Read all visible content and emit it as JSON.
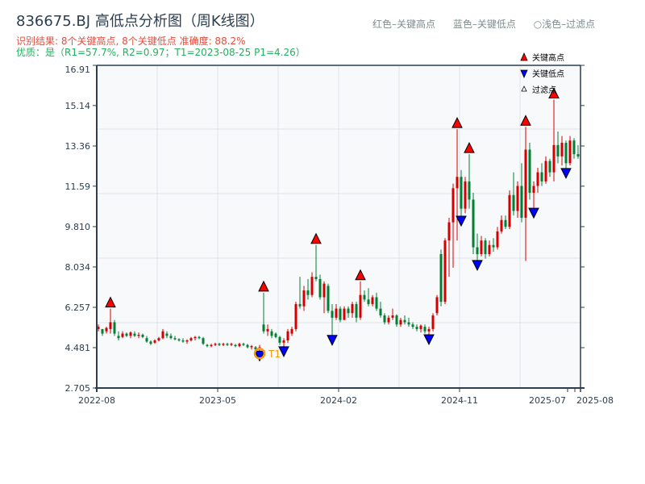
{
  "header": {
    "title": "836675.BJ 高低点分析图（周K线图）",
    "result_line": "识别结果: 8个关键高点, 8个关键低点  准确度: 88.2%",
    "quality_line": "优质：是（R1=57.7%, R2=0.97；T1=2023-08-25 P1=4.26）",
    "top_legend": [
      "红色–关键高点",
      "蓝色–关键低点",
      "○浅色–过滤点"
    ]
  },
  "chart_data": {
    "type": "candlestick",
    "title": "836675.BJ 高低点分析图（周K线图）",
    "colors": {
      "up": "#d40000",
      "down": "#008030",
      "high_marker": "#ff0000",
      "low_marker": "#0000ff",
      "t1": "#f39c12",
      "plot_bg": "#f7f9fb",
      "axis": "#2c3e50"
    },
    "ylim": [
      2.705,
      16.91
    ],
    "yticks": [
      "2.705",
      "4.481",
      "6.257",
      "8.034",
      "9.810",
      "11.59",
      "13.36",
      "15.14",
      "16.91"
    ],
    "ytick_values": [
      2.705,
      4.481,
      6.257,
      8.034,
      9.81,
      11.59,
      13.36,
      15.14,
      16.91
    ],
    "xticks": [
      "2022-08",
      "2023-05",
      "2024-02",
      "2024-11",
      "2025-07",
      "2025-08"
    ],
    "grid": true,
    "legend": {
      "position": "top-right",
      "items": [
        "关键高点",
        "关键低点",
        "过滤点"
      ]
    },
    "ohlc": [
      [
        5.3,
        5.5,
        5.2,
        5.4
      ],
      [
        5.3,
        5.3,
        5.0,
        5.1
      ],
      [
        5.2,
        5.4,
        5.1,
        5.35
      ],
      [
        5.3,
        6.2,
        5.1,
        5.6
      ],
      [
        5.6,
        5.7,
        5.0,
        5.1
      ],
      [
        5.0,
        5.2,
        4.8,
        4.9
      ],
      [
        4.95,
        5.2,
        4.9,
        5.1
      ],
      [
        5.1,
        5.15,
        4.95,
        5.0
      ],
      [
        5.0,
        5.2,
        4.9,
        5.15
      ],
      [
        5.1,
        5.2,
        4.95,
        5.0
      ],
      [
        5.0,
        5.15,
        4.9,
        5.05
      ],
      [
        5.05,
        5.1,
        4.9,
        4.95
      ],
      [
        4.9,
        5.0,
        4.7,
        4.75
      ],
      [
        4.75,
        4.8,
        4.6,
        4.65
      ],
      [
        4.7,
        4.85,
        4.65,
        4.8
      ],
      [
        4.8,
        4.95,
        4.75,
        4.9
      ],
      [
        4.9,
        5.3,
        4.85,
        5.2
      ],
      [
        5.1,
        5.2,
        4.9,
        5.0
      ],
      [
        5.0,
        5.1,
        4.85,
        4.9
      ],
      [
        4.9,
        5.0,
        4.8,
        4.85
      ],
      [
        4.85,
        4.9,
        4.75,
        4.8
      ],
      [
        4.8,
        4.9,
        4.7,
        4.75
      ],
      [
        4.75,
        4.85,
        4.65,
        4.8
      ],
      [
        4.8,
        4.95,
        4.75,
        4.9
      ],
      [
        4.9,
        5.0,
        4.8,
        4.95
      ],
      [
        4.95,
        5.0,
        4.85,
        4.9
      ],
      [
        4.9,
        4.95,
        4.6,
        4.65
      ],
      [
        4.6,
        4.65,
        4.5,
        4.55
      ],
      [
        4.55,
        4.65,
        4.5,
        4.6
      ],
      [
        4.6,
        4.7,
        4.55,
        4.65
      ],
      [
        4.65,
        4.7,
        4.55,
        4.6
      ],
      [
        4.6,
        4.7,
        4.55,
        4.65
      ],
      [
        4.65,
        4.7,
        4.55,
        4.6
      ],
      [
        4.6,
        4.7,
        4.55,
        4.65
      ],
      [
        4.6,
        4.65,
        4.5,
        4.55
      ],
      [
        4.55,
        4.7,
        4.5,
        4.65
      ],
      [
        4.65,
        4.7,
        4.55,
        4.6
      ],
      [
        4.6,
        4.65,
        4.45,
        4.5
      ],
      [
        4.5,
        4.6,
        4.4,
        4.55
      ],
      [
        4.5,
        4.55,
        4.3,
        4.4
      ],
      [
        4.4,
        4.6,
        4.26,
        4.5
      ],
      [
        5.5,
        6.9,
        5.1,
        5.2
      ],
      [
        5.2,
        5.5,
        5.0,
        5.3
      ],
      [
        5.2,
        5.3,
        4.9,
        5.0
      ],
      [
        5.1,
        5.15,
        4.9,
        4.95
      ],
      [
        4.95,
        5.0,
        4.6,
        4.7
      ],
      [
        4.7,
        4.9,
        4.45,
        4.8
      ],
      [
        4.8,
        5.3,
        4.7,
        5.2
      ],
      [
        5.1,
        5.4,
        5.0,
        5.3
      ],
      [
        5.3,
        6.5,
        5.2,
        6.4
      ],
      [
        6.4,
        7.6,
        6.2,
        6.3
      ],
      [
        6.3,
        7.2,
        6.1,
        7.0
      ],
      [
        7.0,
        7.5,
        6.6,
        6.8
      ],
      [
        6.8,
        7.8,
        6.7,
        7.6
      ],
      [
        7.6,
        9.0,
        7.4,
        7.5
      ],
      [
        7.5,
        7.7,
        6.6,
        6.7
      ],
      [
        6.7,
        7.4,
        6.0,
        7.3
      ],
      [
        7.2,
        7.3,
        6.0,
        6.1
      ],
      [
        6.1,
        6.4,
        4.95,
        5.8
      ],
      [
        5.8,
        6.4,
        5.7,
        6.2
      ],
      [
        6.2,
        6.3,
        5.6,
        5.7
      ],
      [
        5.7,
        6.3,
        5.7,
        6.2
      ],
      [
        6.2,
        6.3,
        5.8,
        6.0
      ],
      [
        6.0,
        6.5,
        5.8,
        6.4
      ],
      [
        6.4,
        6.5,
        5.6,
        5.8
      ],
      [
        5.8,
        7.4,
        5.7,
        6.8
      ],
      [
        6.8,
        7.0,
        6.5,
        6.6
      ],
      [
        6.6,
        7.1,
        6.3,
        6.4
      ],
      [
        6.4,
        6.8,
        6.3,
        6.7
      ],
      [
        6.7,
        6.9,
        6.1,
        6.2
      ],
      [
        6.2,
        6.5,
        5.8,
        5.9
      ],
      [
        5.9,
        6.0,
        5.5,
        5.6
      ],
      [
        5.6,
        5.9,
        5.5,
        5.8
      ],
      [
        5.8,
        6.2,
        5.7,
        5.9
      ],
      [
        5.9,
        5.95,
        5.4,
        5.5
      ],
      [
        5.5,
        5.8,
        5.4,
        5.7
      ],
      [
        5.7,
        5.9,
        5.5,
        5.6
      ],
      [
        5.6,
        5.8,
        5.4,
        5.5
      ],
      [
        5.5,
        5.6,
        5.3,
        5.4
      ],
      [
        5.4,
        5.5,
        5.2,
        5.3
      ],
      [
        5.3,
        5.5,
        5.15,
        5.45
      ],
      [
        5.4,
        5.5,
        5.1,
        5.2
      ],
      [
        5.2,
        5.4,
        4.98,
        5.3
      ],
      [
        5.3,
        6.0,
        5.2,
        5.9
      ],
      [
        6.0,
        6.8,
        5.9,
        6.7
      ],
      [
        8.6,
        8.8,
        6.3,
        6.5
      ],
      [
        6.5,
        9.3,
        6.4,
        9.2
      ],
      [
        9.2,
        10.2,
        7.6,
        10.0
      ],
      [
        10.0,
        11.7,
        8.0,
        11.5
      ],
      [
        11.5,
        14.1,
        9.2,
        12.0
      ],
      [
        12.0,
        12.3,
        10.2,
        10.6
      ],
      [
        10.6,
        12.0,
        10.4,
        11.8
      ],
      [
        11.8,
        13.0,
        10.6,
        11.0
      ],
      [
        11.0,
        11.3,
        8.6,
        8.9
      ],
      [
        8.9,
        9.5,
        8.25,
        8.6
      ],
      [
        8.6,
        9.4,
        8.5,
        9.2
      ],
      [
        9.2,
        9.3,
        8.4,
        8.6
      ],
      [
        8.6,
        9.2,
        8.5,
        9.0
      ],
      [
        9.0,
        9.3,
        8.7,
        8.9
      ],
      [
        8.9,
        9.8,
        8.8,
        9.6
      ],
      [
        9.6,
        10.3,
        9.5,
        10.1
      ],
      [
        10.1,
        10.3,
        9.7,
        9.8
      ],
      [
        9.8,
        11.4,
        9.7,
        11.2
      ],
      [
        11.2,
        12.2,
        10.3,
        10.5
      ],
      [
        10.5,
        11.8,
        10.2,
        11.6
      ],
      [
        11.6,
        12.6,
        10.0,
        10.2
      ],
      [
        10.2,
        14.2,
        8.3,
        13.2
      ],
      [
        13.2,
        13.5,
        11.0,
        11.3
      ],
      [
        11.3,
        11.8,
        10.55,
        11.6
      ],
      [
        11.6,
        12.4,
        11.3,
        12.2
      ],
      [
        12.2,
        12.6,
        11.6,
        11.8
      ],
      [
        11.8,
        12.9,
        11.7,
        12.7
      ],
      [
        12.7,
        12.8,
        12.0,
        12.2
      ],
      [
        12.2,
        15.4,
        11.8,
        13.4
      ],
      [
        13.4,
        14.0,
        12.6,
        12.9
      ],
      [
        12.9,
        13.8,
        12.5,
        13.5
      ],
      [
        13.5,
        13.6,
        12.3,
        12.6
      ],
      [
        12.6,
        13.8,
        12.5,
        13.6
      ],
      [
        13.6,
        13.7,
        12.8,
        13.0
      ],
      [
        13.0,
        13.4,
        12.8,
        12.9
      ]
    ],
    "key_highs": [
      {
        "i": 3,
        "p": 6.2
      },
      {
        "i": 41,
        "p": 6.9
      },
      {
        "i": 54,
        "p": 9.0
      },
      {
        "i": 65,
        "p": 7.4
      },
      {
        "i": 89,
        "p": 14.1
      },
      {
        "i": 92,
        "p": 13.0
      },
      {
        "i": 106,
        "p": 14.2
      },
      {
        "i": 113,
        "p": 15.4
      }
    ],
    "key_lows": [
      {
        "i": 40,
        "p": 4.26
      },
      {
        "i": 46,
        "p": 4.45
      },
      {
        "i": 58,
        "p": 4.95
      },
      {
        "i": 82,
        "p": 4.98
      },
      {
        "i": 90,
        "p": 10.2
      },
      {
        "i": 94,
        "p": 8.25
      },
      {
        "i": 108,
        "p": 10.55
      },
      {
        "i": 116,
        "p": 12.3
      }
    ],
    "t1": {
      "i": 40,
      "p": 4.26,
      "label": "T1"
    }
  }
}
